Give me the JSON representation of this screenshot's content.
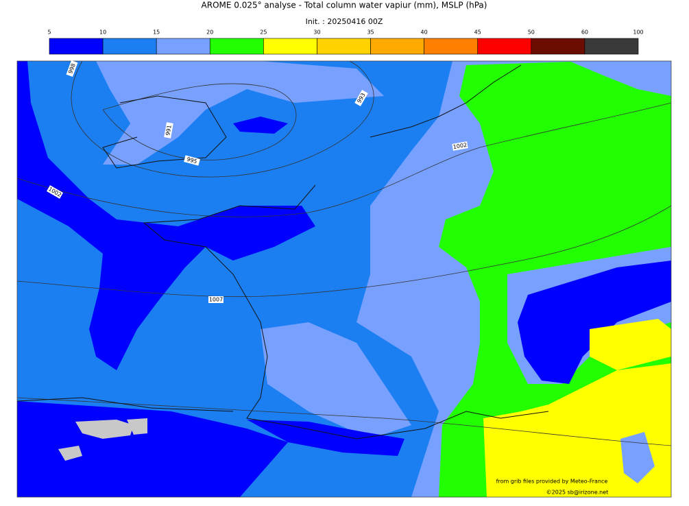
{
  "header": {
    "title": "AROME 0.025° analyse - Total column water vapiur (mm), MSLP (hPa)",
    "subtitle": "Init. : 20250416 00Z"
  },
  "colorbar": {
    "ticks": [
      5,
      10,
      15,
      20,
      25,
      30,
      35,
      40,
      45,
      50,
      60,
      100
    ],
    "colors": [
      "#0000ff",
      "#1b7ff2",
      "#78a0ff",
      "#22ff00",
      "#ffff00",
      "#ffd200",
      "#ffaa00",
      "#ff8000",
      "#ff0000",
      "#6b0d00",
      "#3a3a3a"
    ]
  },
  "map": {
    "isobar_labels": [
      "998",
      "993",
      "991",
      "995",
      "1002",
      "1007",
      "1002"
    ]
  },
  "credits": [
    "from grib files provided by Meteo-France",
    "©2025 sb@irizone.net"
  ]
}
